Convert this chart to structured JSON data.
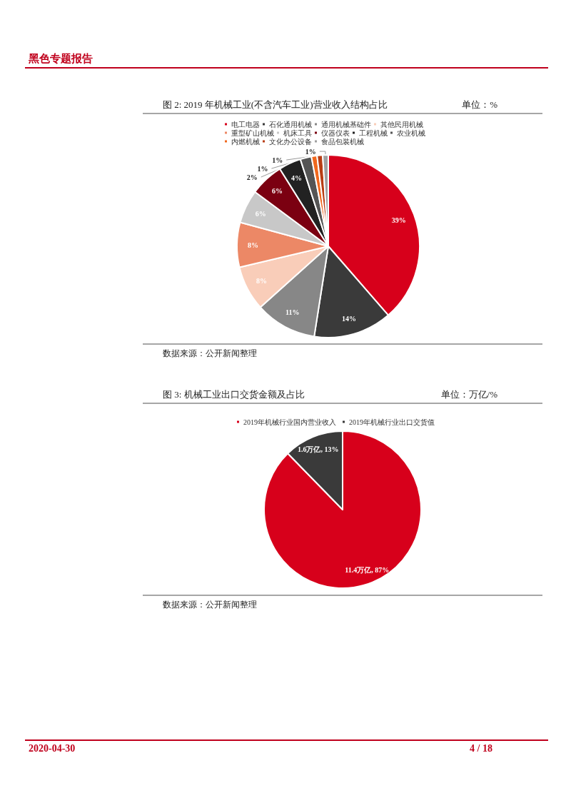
{
  "chart_data": [
    {
      "type": "pie",
      "title": "图 2: 2019 年机械工业(不含汽车工业)营业收入结构占比",
      "subtitle": "单位：%",
      "categories": [
        "电工电器",
        "石化通用机械",
        "通用机械基础件",
        "其他民用机械",
        "重型矿山机械",
        "机床工具",
        "仪器仪表",
        "工程机械",
        "农业机械",
        "内燃机械",
        "文化办公设备",
        "食品包装机械"
      ],
      "values": [
        39,
        14,
        11,
        8,
        8,
        6,
        6,
        4,
        2,
        1,
        1,
        1
      ],
      "colors": [
        "#d7001b",
        "#3a3a3a",
        "#878787",
        "#f9cdb9",
        "#ec8866",
        "#c8c8c8",
        "#7b0011",
        "#222222",
        "#555555",
        "#f0681e",
        "#b83d14",
        "#a0a0a0"
      ],
      "value_labels": [
        "39%",
        "14%",
        "11%",
        "8%",
        "8%",
        "6%",
        "6%",
        "4%",
        "2%",
        "1%",
        "1%",
        "1%"
      ],
      "legend": "top",
      "annotations": [
        "数据来源：公开新闻整理",
        "黑色专题报告"
      ]
    },
    {
      "type": "pie",
      "title": "图 3: 机械工业出口交货金额及占比",
      "subtitle": "单位：万亿/%",
      "categories": [
        "2019年机械行业国内营业收入",
        "2019年机械行业出口交货值"
      ],
      "values": [
        11.4,
        1.6
      ],
      "colors": [
        "#d7001b",
        "#3a3a3a"
      ],
      "value_labels": [
        "11.4万亿, 87%",
        "1.6万亿, 13%"
      ],
      "legend": "top",
      "annotations": [
        "数据来源：公开新闻整理",
        "2020-04-30",
        "4 / 18"
      ]
    }
  ]
}
